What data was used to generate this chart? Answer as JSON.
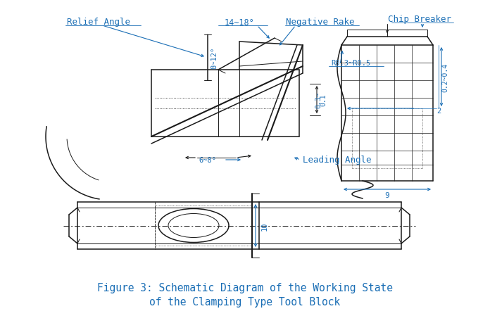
{
  "background_color": "#ffffff",
  "line_color": "#1a1a1a",
  "annotation_color": "#1a6eb5",
  "figure_caption_line1": "Figure 3: Schematic Diagram of the Working State",
  "figure_caption_line2": "of the Clamping Type Tool Block",
  "caption_color": "#1a6eb5",
  "caption_fontsize": 10.5,
  "annotation_fontsize": 9,
  "dim_fontsize": 7.5,
  "labels": {
    "relief_angle": "Relief Angle",
    "negative_rake": "Negative Rake",
    "chip_breaker": "Chip Breaker",
    "leading_angle": "Leading Angle",
    "angle_8_12": "8~12°",
    "angle_14_18": "14~18°",
    "angle_6_8": "6~8°",
    "r0305": "R0.3~R0.5",
    "dim_02_04": "0.2~0.4",
    "dim_03_01": "0.3~\n0.1",
    "dim_2": "2",
    "dim_9": "9",
    "dim_10": "10"
  }
}
